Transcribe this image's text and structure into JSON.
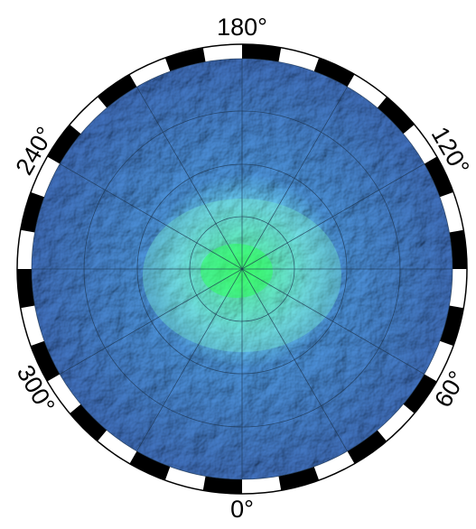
{
  "map": {
    "longitude_labels": [
      "180°",
      "120°",
      "60°",
      "0°",
      "300°",
      "240°"
    ]
  }
}
